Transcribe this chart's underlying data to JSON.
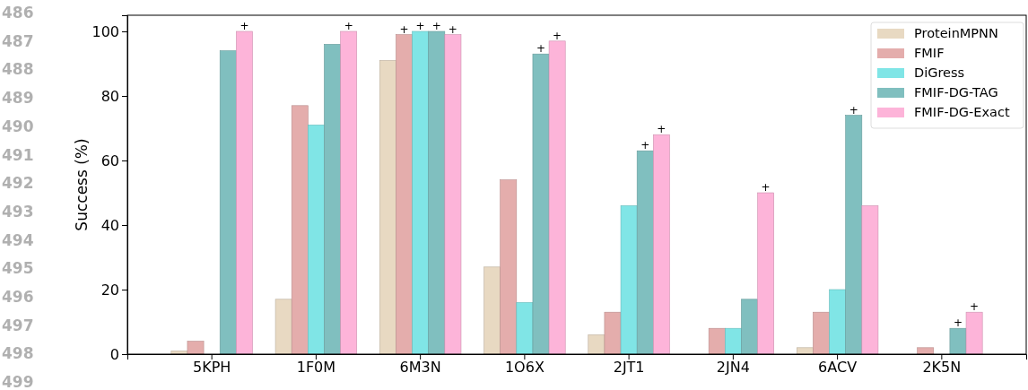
{
  "chart_data": {
    "type": "bar",
    "ylabel": "Success (%)",
    "categories": [
      "5KPH",
      "1F0M",
      "6M3N",
      "1O6X",
      "2JT1",
      "2JN4",
      "6ACV",
      "2K5N"
    ],
    "series": [
      {
        "name": "ProteinMPNN",
        "color": "#e8d9c2",
        "values": [
          1,
          17,
          91,
          27,
          6,
          0,
          2,
          0
        ]
      },
      {
        "name": "FMIF",
        "color": "#e4adac",
        "values": [
          4,
          77,
          99,
          54,
          13,
          8,
          13,
          2
        ],
        "value_labels": [
          null,
          null,
          "+",
          null,
          null,
          null,
          null,
          null
        ]
      },
      {
        "name": "DiGress",
        "color": "#80e5e6",
        "values": [
          0,
          71,
          100,
          16,
          46,
          8,
          20,
          0
        ],
        "value_labels": [
          null,
          null,
          "+",
          null,
          null,
          null,
          null,
          null
        ]
      },
      {
        "name": "FMIF-DG-TAG",
        "color": "#80bfbf",
        "values": [
          94,
          96,
          100,
          93,
          63,
          17,
          74,
          8
        ],
        "value_labels": [
          null,
          null,
          "+",
          "+",
          "+",
          null,
          "+",
          "+"
        ]
      },
      {
        "name": "FMIF-DG-Exact",
        "color": "#fdb4d9",
        "values": [
          100,
          100,
          99,
          97,
          68,
          50,
          46,
          13
        ],
        "value_labels": [
          "+",
          "+",
          "+",
          "+",
          "+",
          "+",
          null,
          "+"
        ]
      }
    ],
    "ylim": [
      0,
      105
    ],
    "yticks": [
      0,
      20,
      40,
      60,
      80,
      100
    ],
    "legend": "top right",
    "annotations": [
      "486",
      "487",
      "488",
      "489",
      "490",
      "491",
      "492",
      "493",
      "494",
      "495",
      "496",
      "497",
      "498",
      "499"
    ]
  }
}
